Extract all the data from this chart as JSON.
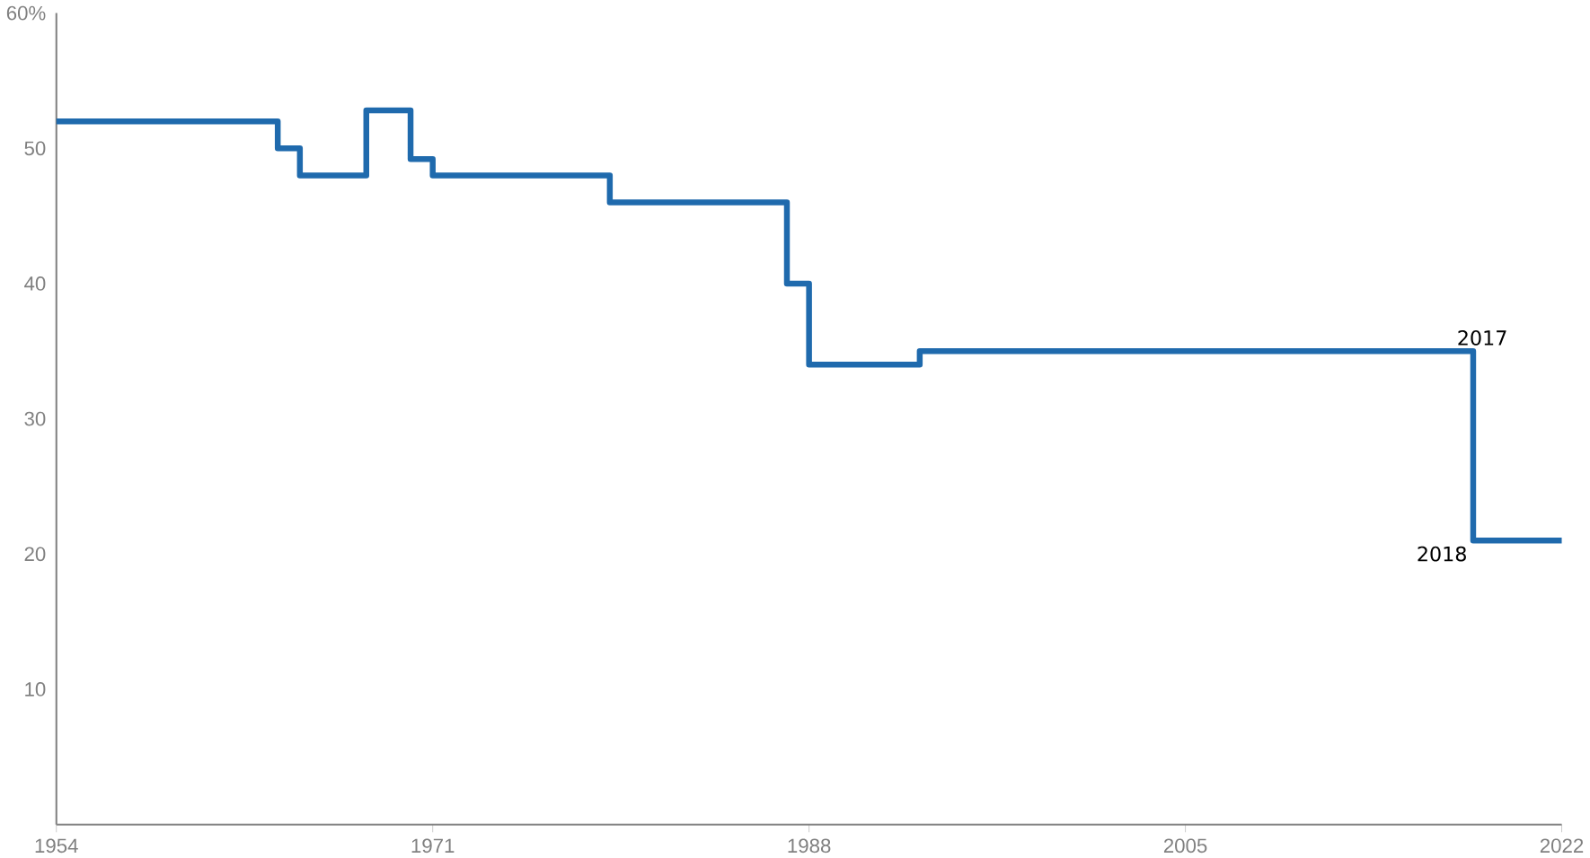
{
  "chart_data": {
    "type": "step",
    "x": [
      1954,
      1964,
      1965,
      1968,
      1970,
      1971,
      1979,
      1987,
      1988,
      1993,
      2018,
      2022
    ],
    "series": [
      {
        "color": "#1f6aad",
        "values": [
          52,
          50,
          48,
          52.8,
          49.2,
          48,
          46,
          40,
          34,
          35,
          21,
          21
        ]
      }
    ],
    "xlim": [
      1954,
      2022
    ],
    "xticks": [
      1954,
      1971,
      1988,
      2005,
      2022
    ],
    "ylim": [
      0,
      60
    ],
    "yticks": [
      10,
      20,
      30,
      40,
      50,
      {
        "value": 60,
        "label": "60%"
      }
    ],
    "annotations": [
      {
        "text": "2017",
        "x": 2017,
        "y": 35
      },
      {
        "text": "2018",
        "x": 2018,
        "y": 21
      }
    ],
    "grid": false,
    "marker": "none",
    "line_style": "solid"
  }
}
